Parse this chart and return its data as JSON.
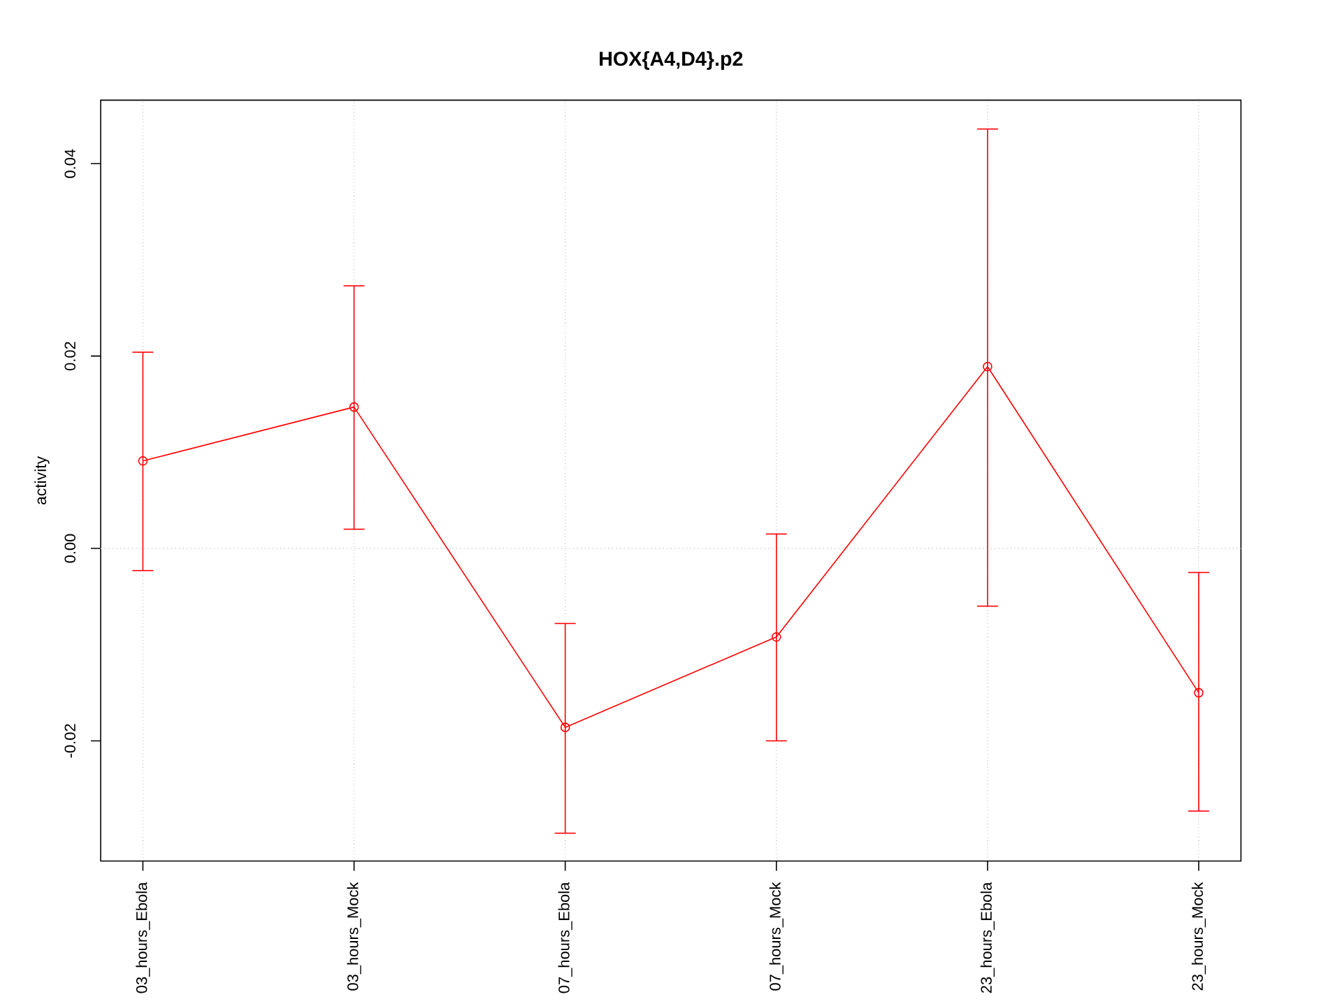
{
  "chart_data": {
    "type": "line",
    "title": "HOX{A4,D4}.p2",
    "ylabel": "activity",
    "categories": [
      "03_hours_Ebola",
      "03_hours_Mock",
      "07_hours_Ebola",
      "07_hours_Mock",
      "23_hours_Ebola",
      "23_hours_Mock"
    ],
    "values": [
      0.0091,
      0.0147,
      -0.0186,
      -0.0092,
      0.0189,
      -0.015
    ],
    "errors": [
      [
        -0.0023,
        0.0204
      ],
      [
        0.002,
        0.0273
      ],
      [
        -0.0296,
        -0.0078
      ],
      [
        -0.02,
        0.0015
      ],
      [
        -0.006,
        0.0436
      ],
      [
        -0.0273,
        -0.0025
      ]
    ],
    "color": "#ff0000",
    "marker": "circle",
    "line_style": "solid",
    "grid": "x",
    "ylim": [
      -0.0325,
      0.0466
    ],
    "yticks": [
      {
        "value": -0.02,
        "label": "-0.02"
      },
      {
        "value": 0,
        "label": "0.00"
      },
      {
        "value": 0.02,
        "label": "0.02"
      },
      {
        "value": 0.04,
        "label": "0.04"
      }
    ],
    "ref_lines": [
      {
        "axis": "y",
        "value": 0,
        "color": "#d3d3d3",
        "line_style": "dotted"
      }
    ]
  }
}
